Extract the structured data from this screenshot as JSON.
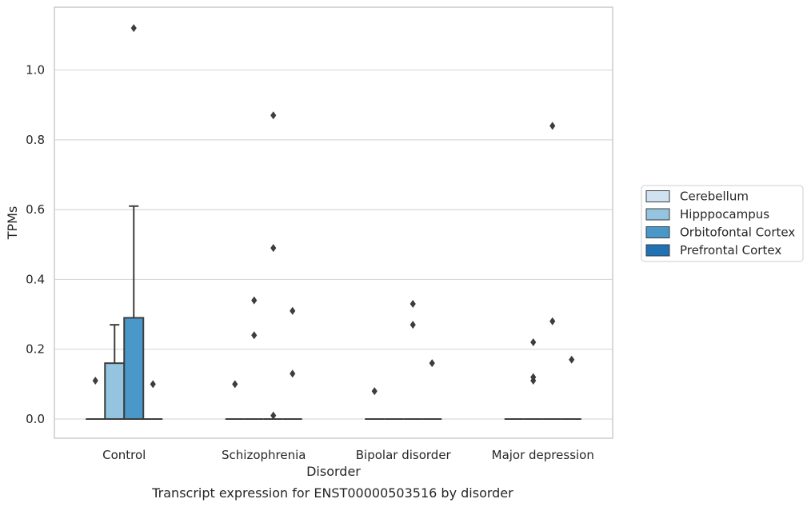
{
  "chart_data": {
    "type": "box",
    "caption": "Transcript expression for ENST00000503516 by disorder",
    "xlabel": "Disorder",
    "ylabel": "TPMs",
    "ylim": [
      -0.055,
      1.18
    ],
    "yticks": [
      "0.0",
      "0.2",
      "0.4",
      "0.6",
      "0.8",
      "1.0"
    ],
    "ytick_values": [
      0,
      0.2,
      0.4,
      0.6,
      0.8,
      1.0
    ],
    "grid": true,
    "legend_position": "right",
    "categories": [
      "Control",
      "Schizophrenia",
      "Bipolar disorder",
      "Major depression"
    ],
    "series": [
      {
        "name": "Cerebellum",
        "color": "#d0e1f2",
        "boxes": [
          {
            "q1": 0,
            "median": 0,
            "q3": 0,
            "whislo": 0,
            "whishi": 0,
            "fliers": [
              0.11
            ]
          },
          {
            "q1": 0,
            "median": 0,
            "q3": 0,
            "whislo": 0,
            "whishi": 0,
            "fliers": [
              0.1
            ]
          },
          {
            "q1": 0,
            "median": 0,
            "q3": 0,
            "whislo": 0,
            "whishi": 0,
            "fliers": [
              0.08
            ]
          },
          {
            "q1": 0,
            "median": 0,
            "q3": 0,
            "whislo": 0,
            "whishi": 0,
            "fliers": []
          }
        ]
      },
      {
        "name": "Hipppocampus",
        "color": "#94c4df",
        "boxes": [
          {
            "q1": 0,
            "median": 0,
            "q3": 0.16,
            "whislo": 0,
            "whishi": 0.27,
            "fliers": []
          },
          {
            "q1": 0,
            "median": 0,
            "q3": 0,
            "whislo": 0,
            "whishi": 0,
            "fliers": [
              0.34,
              0.24
            ]
          },
          {
            "q1": 0,
            "median": 0,
            "q3": 0,
            "whislo": 0,
            "whishi": 0,
            "fliers": []
          },
          {
            "q1": 0,
            "median": 0,
            "q3": 0,
            "whislo": 0,
            "whishi": 0,
            "fliers": [
              0.22,
              0.12,
              0.11
            ]
          }
        ]
      },
      {
        "name": "Orbitofontal Cortex",
        "color": "#4a98c9",
        "boxes": [
          {
            "q1": 0,
            "median": 0,
            "q3": 0.29,
            "whislo": 0,
            "whishi": 0.61,
            "fliers": [
              1.12
            ]
          },
          {
            "q1": 0,
            "median": 0,
            "q3": 0,
            "whislo": 0,
            "whishi": 0,
            "fliers": [
              0.87,
              0.49,
              0.01
            ]
          },
          {
            "q1": 0,
            "median": 0,
            "q3": 0,
            "whislo": 0,
            "whishi": 0,
            "fliers": [
              0.33,
              0.27
            ]
          },
          {
            "q1": 0,
            "median": 0,
            "q3": 0,
            "whislo": 0,
            "whishi": 0,
            "fliers": [
              0.28,
              0.84
            ]
          }
        ]
      },
      {
        "name": "Prefrontal Cortex",
        "color": "#2171b5",
        "boxes": [
          {
            "q1": 0,
            "median": 0,
            "q3": 0,
            "whislo": 0,
            "whishi": 0,
            "fliers": [
              0.1
            ]
          },
          {
            "q1": 0,
            "median": 0,
            "q3": 0,
            "whislo": 0,
            "whishi": 0,
            "fliers": [
              0.31,
              0.13
            ]
          },
          {
            "q1": 0,
            "median": 0,
            "q3": 0,
            "whislo": 0,
            "whishi": 0,
            "fliers": [
              0.16
            ]
          },
          {
            "q1": 0,
            "median": 0,
            "q3": 0,
            "whislo": 0,
            "whishi": 0,
            "fliers": [
              0.17
            ]
          }
        ]
      }
    ]
  }
}
